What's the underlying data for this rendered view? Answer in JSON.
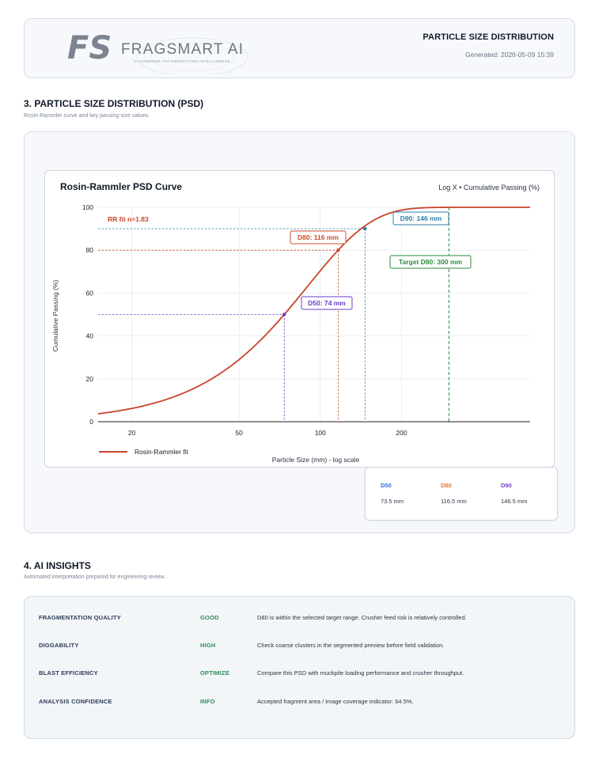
{
  "header": {
    "logo_mark": "FS",
    "logo_name": "FRAGSMART AI",
    "logo_tagline": "AI-POWERED FRAGMENTATION INTELLIGENCE",
    "report_title": "PARTICLE SIZE DISTRIBUTION",
    "generated": "Generated: 2026-05-09 15:39"
  },
  "psd_section": {
    "title": "3. PARTICLE SIZE DISTRIBUTION (PSD)",
    "subtitle": "Rosin-Rammler curve and key passing-size values."
  },
  "chart_data": {
    "type": "line",
    "title": "Rosin-Rammler PSD Curve",
    "subtitle": "Log X • Cumulative Passing (%)",
    "xlabel": "Particle Size (mm) - log scale",
    "ylabel": "Cumulative Passing (%)",
    "x_scale": "log",
    "xlim": [
      15,
      600
    ],
    "ylim": [
      0,
      100
    ],
    "x_ticks": [
      20,
      50,
      100,
      200
    ],
    "y_ticks": [
      0,
      20,
      40,
      60,
      80,
      100
    ],
    "grid": true,
    "legend_position": "bottom-left",
    "fit_label": "RR fit  n=1.83",
    "series": [
      {
        "name": "Rosin-Rammler fit",
        "color": "#c8442a",
        "x50": 73.5,
        "n": 1.83,
        "x": [
          15,
          20,
          30,
          40,
          50,
          60,
          73.5,
          90,
          116.5,
          146.5,
          180,
          220,
          300,
          400,
          600
        ],
        "y": [
          4.5,
          7.6,
          15.9,
          25.8,
          36.6,
          47.3,
          50.0,
          70.5,
          80.0,
          90.0,
          96.2,
          98.9,
          99.9,
          100,
          100
        ]
      }
    ],
    "markers": [
      {
        "label": "D50: 74 mm",
        "x": 73.5,
        "y": 50,
        "color": "#6a3fc4"
      },
      {
        "label": "D80: 116 mm",
        "x": 116.5,
        "y": 80,
        "color": "#d04b2c"
      },
      {
        "label": "D90: 146 mm",
        "x": 146.5,
        "y": 90,
        "color": "#2f7fa8"
      },
      {
        "label": "Target D80: 300 mm",
        "x": 300,
        "y": null,
        "color": "#2e8b3e"
      }
    ]
  },
  "stats": [
    {
      "label": "D50",
      "value": "73.5 mm",
      "color": "#2f6fdf"
    },
    {
      "label": "D80",
      "value": "116.5 mm",
      "color": "#e0782f"
    },
    {
      "label": "D90",
      "value": "146.5 mm",
      "color": "#7a3fd0"
    }
  ],
  "ai_section": {
    "title": "4. AI INSIGHTS",
    "subtitle": "Automated interpretation prepared for engineering review.",
    "rows": [
      {
        "label": "FRAGMENTATION QUALITY",
        "status": "GOOD",
        "text": "D80 is within the selected target range. Crusher feed risk is relatively controlled."
      },
      {
        "label": "DIGGABILITY",
        "status": "HIGH",
        "text": "Check coarse clusters in the segmented preview before field validation."
      },
      {
        "label": "BLAST EFFICIENCY",
        "status": "OPTIMIZE",
        "text": "Compare this PSD with muckpile loading performance and crusher throughput."
      },
      {
        "label": "ANALYSIS CONFIDENCE",
        "status": "INFO",
        "text": "Accepted fragment area / image coverage indicator: 64.5%."
      }
    ]
  },
  "colors": {
    "curve": "#c8442a",
    "status_green": "#2e8b57",
    "label_navy": "#2b3a58"
  }
}
